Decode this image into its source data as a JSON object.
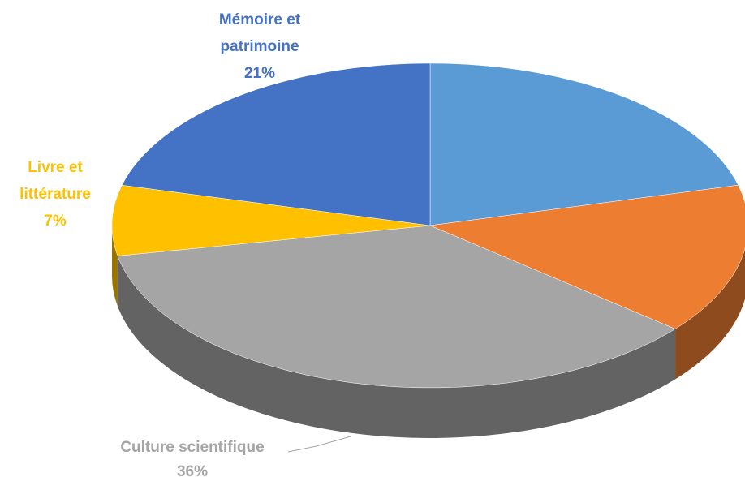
{
  "chart_data": {
    "type": "pie",
    "categories": [
      null,
      null,
      "Culture scientifique",
      "Livre et littérature",
      "Mémoire et patrimoine"
    ],
    "values": [
      21,
      15,
      36,
      7,
      21
    ],
    "value_labels": [
      null,
      null,
      "36%",
      "7%",
      "21%"
    ],
    "colors": [
      "#5b9bd5",
      "#ed7d31",
      "#a5a5a5",
      "#ffc000",
      "#4472c4"
    ]
  }
}
